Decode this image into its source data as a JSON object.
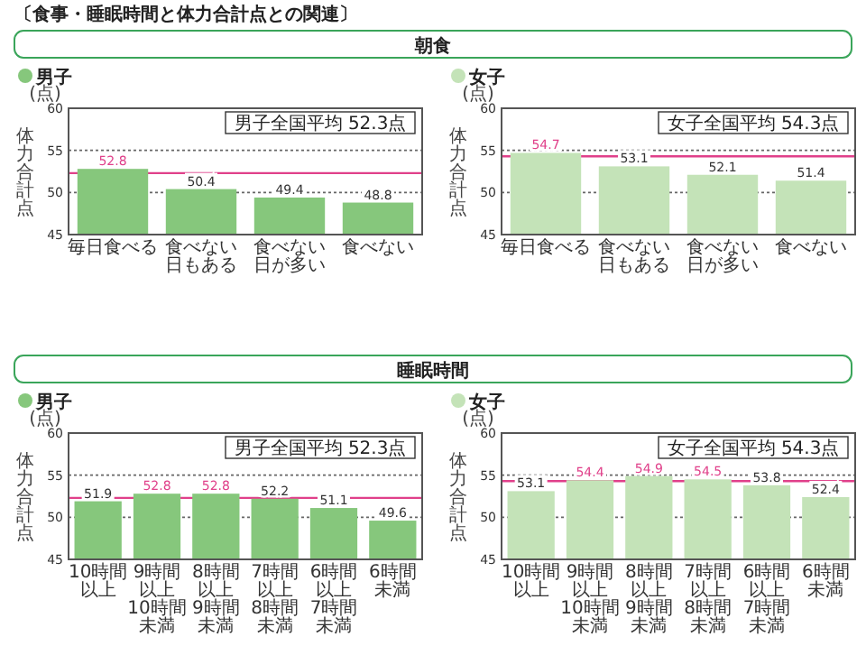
{
  "chart_data": [
    {
      "type": "bar",
      "subtitle": "朝食",
      "title": "男子",
      "ylabel": "体力合計点",
      "annotations": [
        "〔食事・睡眠時間と体力合計点との関連〕",
        "(点)"
      ],
      "categories": [
        "毎日食べる",
        "食べない日もある",
        "食べない日が多い",
        "食べない"
      ],
      "values": [
        52.8,
        50.4,
        49.4,
        48.8
      ],
      "color": "#86c77c",
      "ylim": [
        45,
        60
      ],
      "yticks": [
        45,
        50,
        55,
        60
      ],
      "grid": "y",
      "data_labels": true,
      "ref_lines": [
        {
          "axis": "y",
          "value": 52.3,
          "label": "男子全国平均 52.3点",
          "color": "#e0408a"
        }
      ]
    },
    {
      "type": "bar",
      "title": "女子",
      "ylabel": "体力合計点",
      "annotations": [
        "(点)"
      ],
      "categories": [
        "毎日食べる",
        "食べない日もある",
        "食べない日が多い",
        "食べない"
      ],
      "values": [
        54.7,
        53.1,
        52.1,
        51.4
      ],
      "color": "#c4e3b8",
      "ylim": [
        45,
        60
      ],
      "yticks": [
        45,
        50,
        55,
        60
      ],
      "grid": "y",
      "data_labels": true,
      "ref_lines": [
        {
          "axis": "y",
          "value": 54.3,
          "label": "女子全国平均 54.3点",
          "color": "#e0408a"
        }
      ]
    },
    {
      "type": "bar",
      "subtitle": "睡眠時間",
      "title": "男子",
      "ylabel": "体力合計点",
      "annotations": [
        "(点)"
      ],
      "categories": [
        "10時間以上",
        "9時間以上10時間未満",
        "8時間以上9時間未満",
        "7時間以上8時間未満",
        "6時間以上7時間未満",
        "6時間未満"
      ],
      "values": [
        51.9,
        52.8,
        52.8,
        52.2,
        51.1,
        49.6
      ],
      "color": "#86c77c",
      "ylim": [
        45,
        60
      ],
      "yticks": [
        45,
        50,
        55,
        60
      ],
      "grid": "y",
      "data_labels": true,
      "ref_lines": [
        {
          "axis": "y",
          "value": 52.3,
          "label": "男子全国平均 52.3点",
          "color": "#e0408a"
        }
      ]
    },
    {
      "type": "bar",
      "title": "女子",
      "ylabel": "体力合計点",
      "annotations": [
        "(点)"
      ],
      "categories": [
        "10時間以上",
        "9時間以上10時間未満",
        "8時間以上9時間未満",
        "7時間以上8時間未満",
        "6時間以上7時間未満",
        "6時間未満"
      ],
      "values": [
        53.1,
        54.4,
        54.9,
        54.5,
        53.8,
        52.4
      ],
      "color": "#c4e3b8",
      "ylim": [
        45,
        60
      ],
      "yticks": [
        45,
        50,
        55,
        60
      ],
      "grid": "y",
      "data_labels": true,
      "ref_lines": [
        {
          "axis": "y",
          "value": 54.3,
          "label": "女子全国平均 54.3点",
          "color": "#e0408a"
        }
      ]
    }
  ]
}
